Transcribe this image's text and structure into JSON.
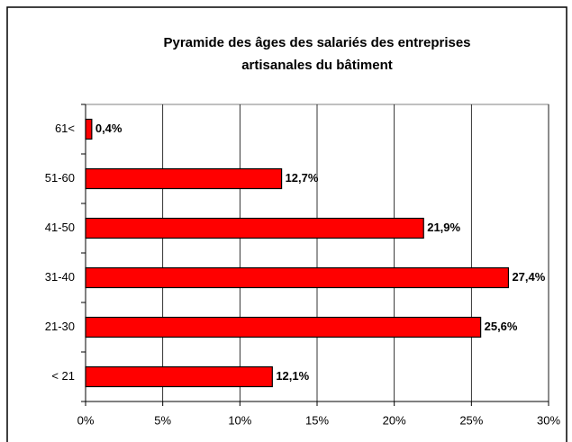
{
  "chart_data": {
    "type": "bar",
    "orientation": "horizontal",
    "title": [
      "Pyramide des âges des salariés des entreprises",
      "artisanales du bâtiment"
    ],
    "categories": [
      "61<",
      "51-60",
      "41-50",
      "31-40",
      "21-30",
      "< 21"
    ],
    "values": [
      0.4,
      12.7,
      21.9,
      27.4,
      25.6,
      12.1
    ],
    "value_labels": [
      "0,4%",
      "12,7%",
      "21,9%",
      "27,4%",
      "25,6%",
      "12,1%"
    ],
    "color": "#ff0000",
    "xlim": [
      0,
      30
    ],
    "xticks": [
      {
        "value": 0,
        "label": "0%"
      },
      {
        "value": 5,
        "label": "5%"
      },
      {
        "value": 10,
        "label": "10%"
      },
      {
        "value": 15,
        "label": "15%"
      },
      {
        "value": 20,
        "label": "20%"
      },
      {
        "value": 25,
        "label": "25%"
      },
      {
        "value": 30,
        "label": "30%"
      }
    ],
    "grid": true
  }
}
